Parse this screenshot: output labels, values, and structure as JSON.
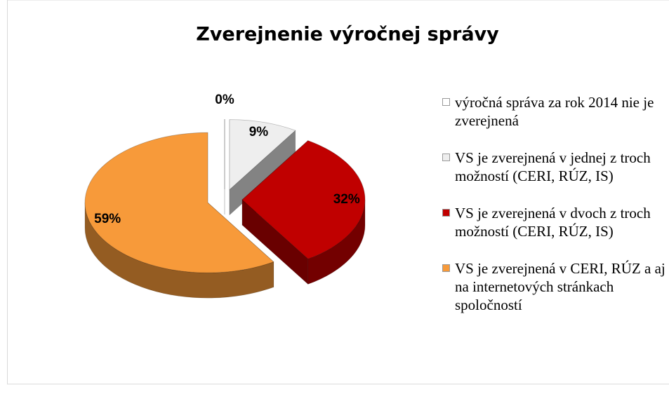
{
  "chart_data": {
    "type": "pie",
    "title": "Zverejnenie výročnej správy",
    "categories": [
      "výročná správa za rok 2014 nie je zverejnená",
      "VS je zverejnená v jednej z troch možností (CERI, RÚZ, IS)",
      "VS je zverejnená v dvoch z troch možností (CERI, RÚZ, IS)",
      "VS je zverejnená v CERI, RÚZ a aj na  internetových stránkach spoločností"
    ],
    "values": [
      0,
      9,
      32,
      59
    ],
    "value_labels": [
      "0%",
      "9%",
      "32%",
      "59%"
    ],
    "colors": [
      "#ffffff",
      "#eeeeee",
      "#c00000",
      "#f79a3a"
    ]
  }
}
